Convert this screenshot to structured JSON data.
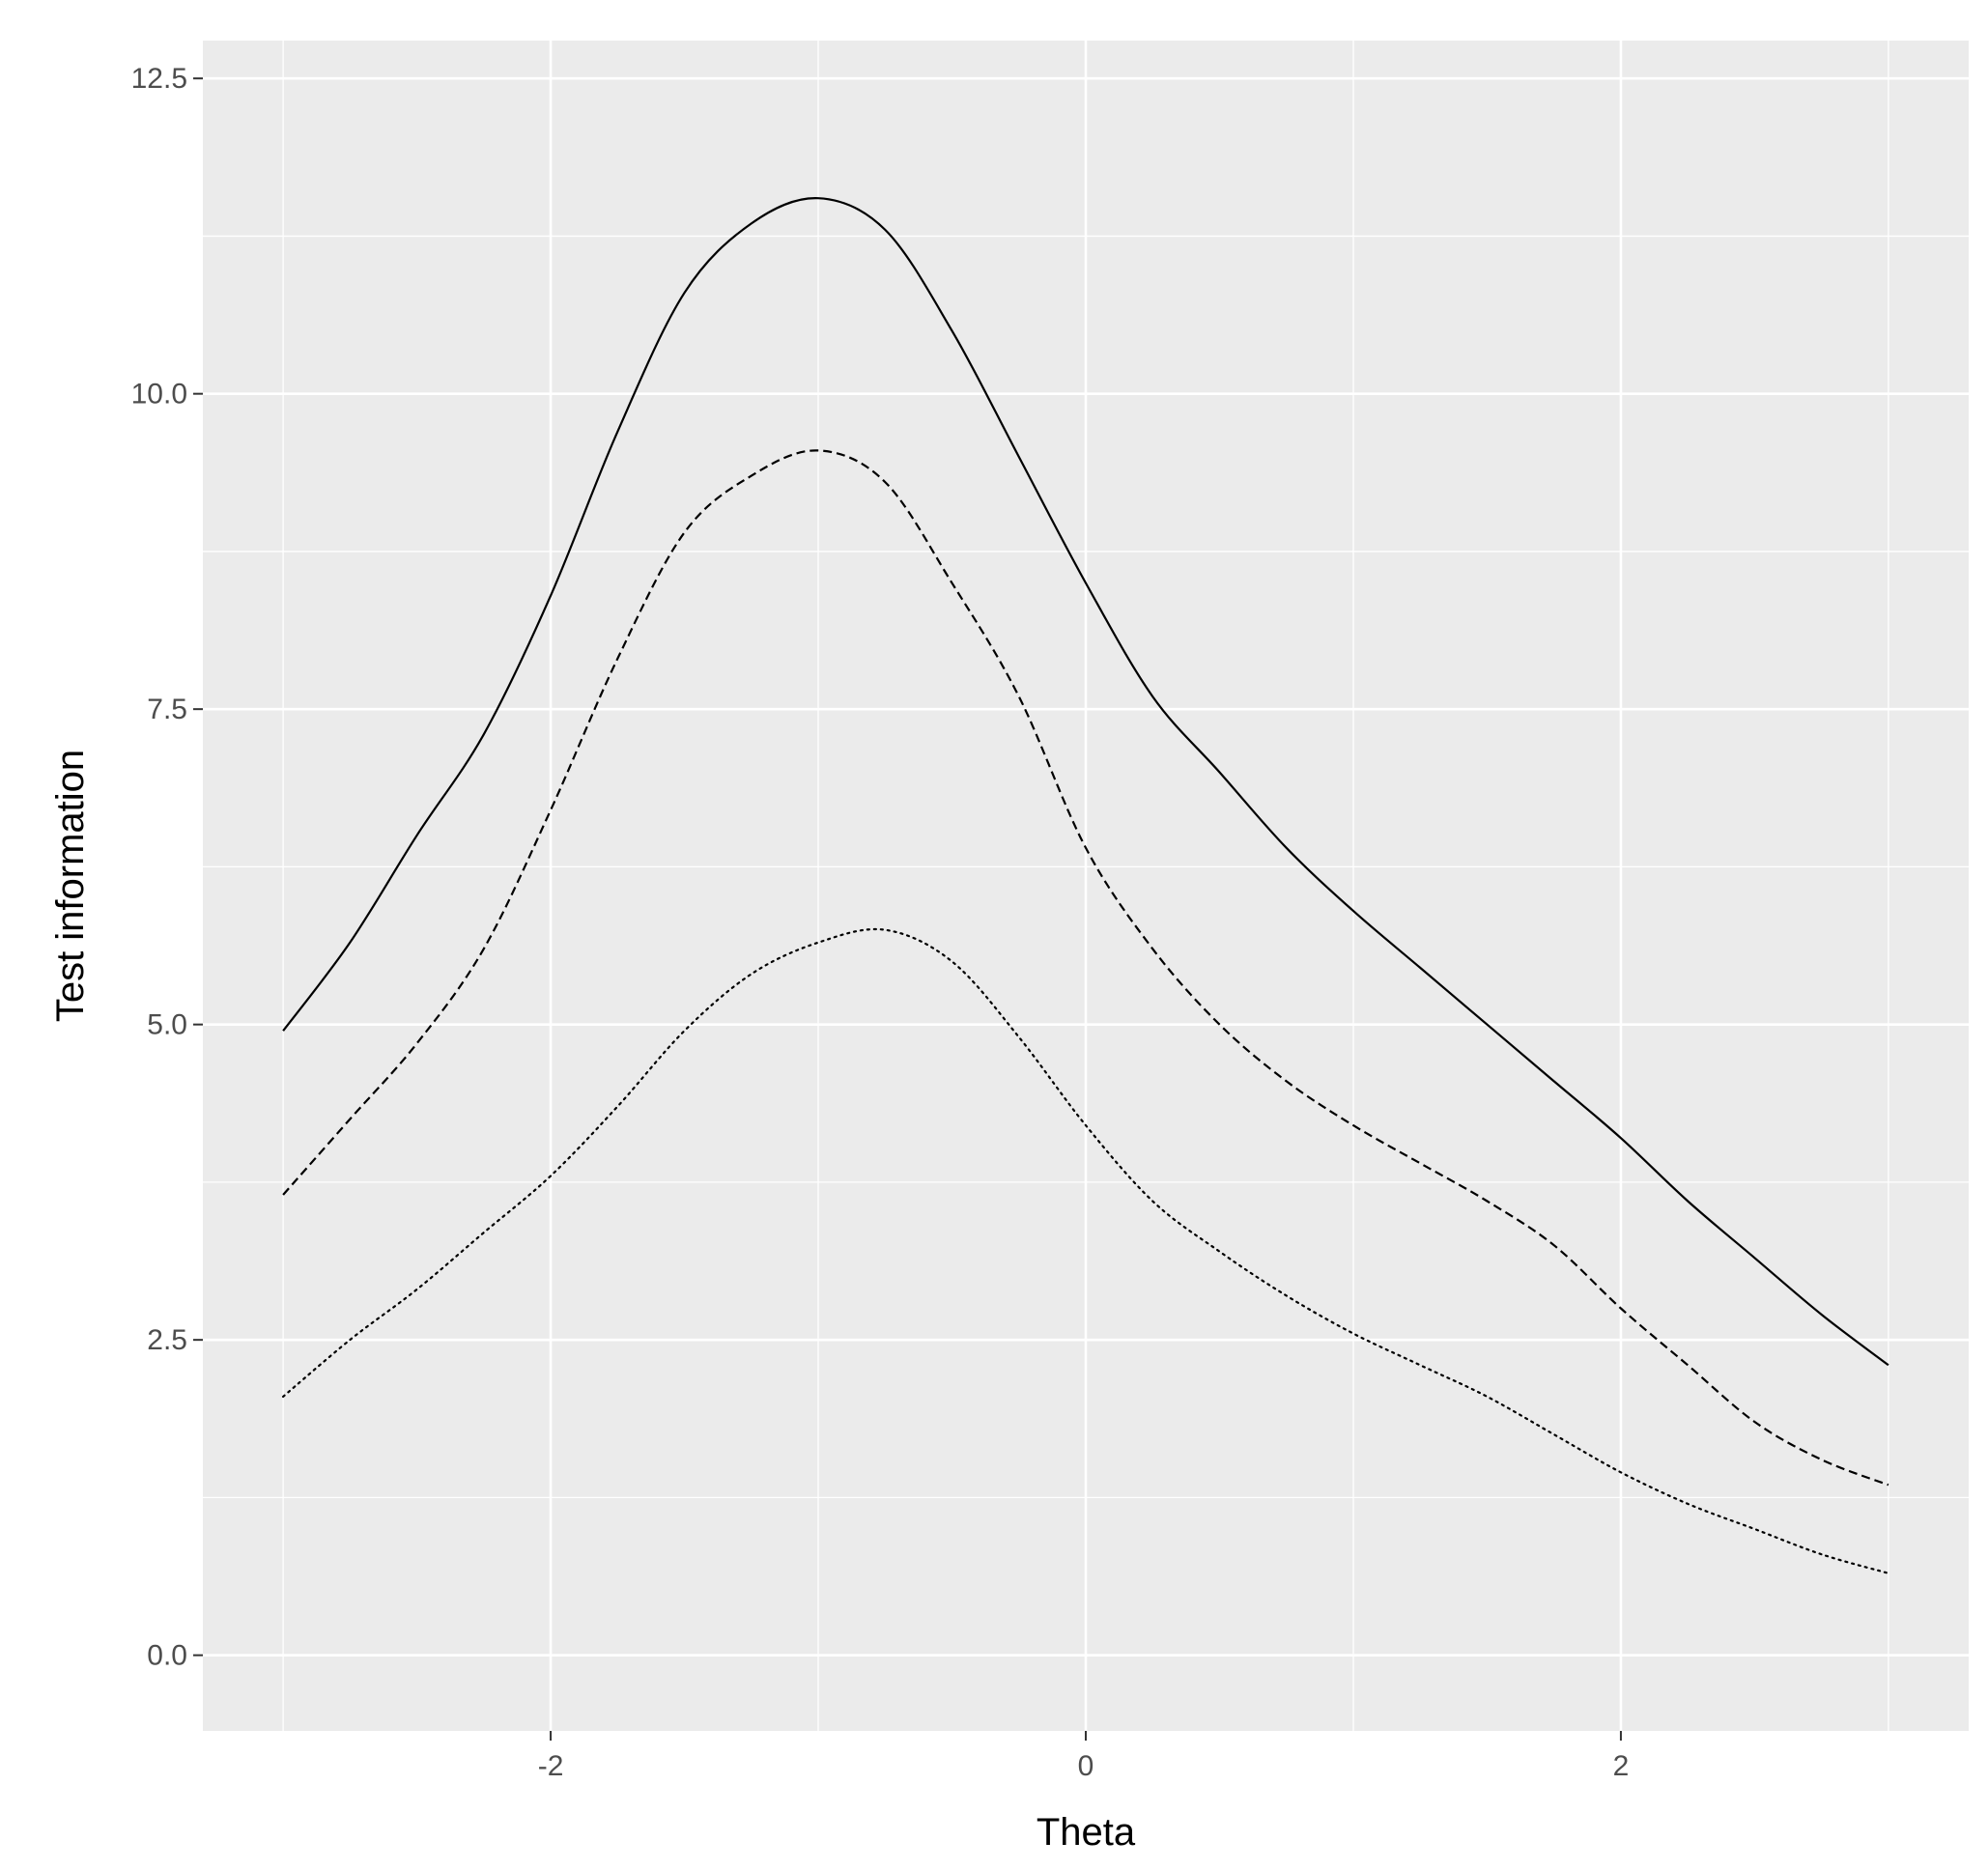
{
  "chart_data": {
    "type": "line",
    "title": "",
    "xlabel": "Theta",
    "ylabel": "Test information",
    "xlim": [
      -3.3,
      3.3
    ],
    "ylim": [
      -0.6,
      12.8
    ],
    "x_ticks": [
      -2,
      0,
      2
    ],
    "x_tick_labels": [
      "-2",
      "0",
      "2"
    ],
    "y_ticks": [
      0,
      2.5,
      5,
      7.5,
      10,
      12.5
    ],
    "y_tick_labels": [
      "0.0",
      "2.5",
      "5.0",
      "7.5",
      "10.0",
      "12.5"
    ],
    "grid": true,
    "legend": "none",
    "background": "#ebebeb",
    "grid_color": "#ffffff",
    "line_color": "#000000",
    "series": [
      {
        "style": "solid",
        "points": [
          [
            -3,
            4.95
          ],
          [
            -2.75,
            5.65
          ],
          [
            -2.5,
            6.5
          ],
          [
            -2.25,
            7.3
          ],
          [
            -2,
            8.4
          ],
          [
            -1.75,
            9.7
          ],
          [
            -1.5,
            10.8
          ],
          [
            -1.25,
            11.35
          ],
          [
            -1,
            11.55
          ],
          [
            -0.75,
            11.3
          ],
          [
            -0.5,
            10.5
          ],
          [
            -0.25,
            9.5
          ],
          [
            0,
            8.5
          ],
          [
            0.25,
            7.6
          ],
          [
            0.5,
            7.0
          ],
          [
            0.75,
            6.4
          ],
          [
            1,
            5.9
          ],
          [
            1.25,
            5.45
          ],
          [
            1.5,
            5.0
          ],
          [
            1.75,
            4.55
          ],
          [
            2,
            4.1
          ],
          [
            2.25,
            3.6
          ],
          [
            2.5,
            3.15
          ],
          [
            2.75,
            2.7
          ],
          [
            3,
            2.3
          ]
        ]
      },
      {
        "style": "dashed",
        "points": [
          [
            -3,
            3.65
          ],
          [
            -2.75,
            4.25
          ],
          [
            -2.5,
            4.85
          ],
          [
            -2.25,
            5.6
          ],
          [
            -2,
            6.7
          ],
          [
            -1.75,
            7.9
          ],
          [
            -1.5,
            8.9
          ],
          [
            -1.25,
            9.35
          ],
          [
            -1,
            9.55
          ],
          [
            -0.75,
            9.3
          ],
          [
            -0.5,
            8.5
          ],
          [
            -0.25,
            7.6
          ],
          [
            0,
            6.4
          ],
          [
            0.25,
            5.6
          ],
          [
            0.5,
            5.0
          ],
          [
            0.75,
            4.55
          ],
          [
            1,
            4.2
          ],
          [
            1.25,
            3.9
          ],
          [
            1.5,
            3.6
          ],
          [
            1.75,
            3.25
          ],
          [
            2,
            2.75
          ],
          [
            2.25,
            2.3
          ],
          [
            2.5,
            1.85
          ],
          [
            2.75,
            1.55
          ],
          [
            3,
            1.35
          ]
        ]
      },
      {
        "style": "dotted",
        "points": [
          [
            -3,
            2.05
          ],
          [
            -2.75,
            2.5
          ],
          [
            -2.5,
            2.9
          ],
          [
            -2.25,
            3.35
          ],
          [
            -2,
            3.8
          ],
          [
            -1.75,
            4.35
          ],
          [
            -1.5,
            4.95
          ],
          [
            -1.25,
            5.4
          ],
          [
            -1,
            5.65
          ],
          [
            -0.75,
            5.75
          ],
          [
            -0.5,
            5.5
          ],
          [
            -0.25,
            4.9
          ],
          [
            0,
            4.2
          ],
          [
            0.25,
            3.6
          ],
          [
            0.5,
            3.2
          ],
          [
            0.75,
            2.85
          ],
          [
            1,
            2.55
          ],
          [
            1.25,
            2.3
          ],
          [
            1.5,
            2.05
          ],
          [
            1.75,
            1.75
          ],
          [
            2,
            1.45
          ],
          [
            2.25,
            1.2
          ],
          [
            2.5,
            1.0
          ],
          [
            2.75,
            0.8
          ],
          [
            3,
            0.65
          ]
        ]
      }
    ]
  }
}
